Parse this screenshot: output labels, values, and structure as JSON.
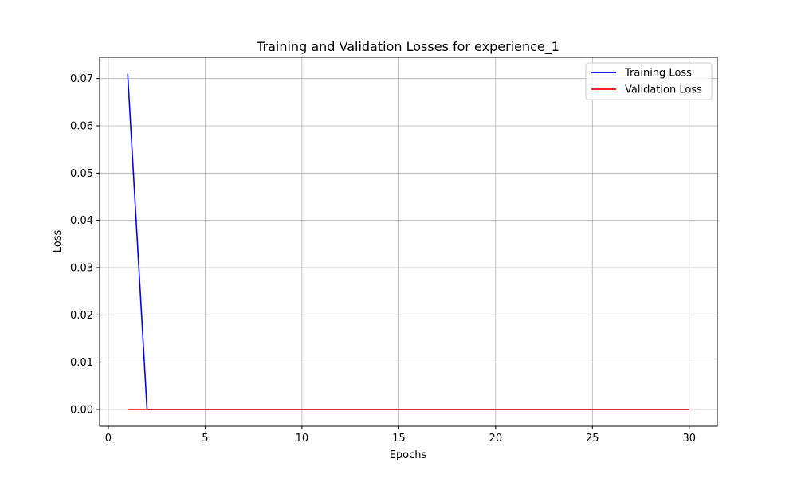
{
  "chart_data": {
    "type": "line",
    "title": "Training and Validation Losses for experience_1",
    "xlabel": "Epochs",
    "ylabel": "Loss",
    "xlim": [
      -0.45,
      31.45
    ],
    "ylim": [
      -0.00355,
      0.0745
    ],
    "xticks": [
      0,
      5,
      10,
      15,
      20,
      25,
      30
    ],
    "xtick_labels": [
      "0",
      "5",
      "10",
      "15",
      "20",
      "25",
      "30"
    ],
    "yticks": [
      0.0,
      0.01,
      0.02,
      0.03,
      0.04,
      0.05,
      0.06,
      0.07
    ],
    "ytick_labels": [
      "0.00",
      "0.01",
      "0.02",
      "0.03",
      "0.04",
      "0.05",
      "0.06",
      "0.07"
    ],
    "grid": true,
    "legend_position": "top-right",
    "series": [
      {
        "name": "Training Loss",
        "color": "#0000ff",
        "x": [
          1,
          2,
          3,
          4,
          5,
          6,
          7,
          8,
          9,
          10,
          11,
          12,
          13,
          14,
          15,
          16,
          17,
          18,
          19,
          20,
          21,
          22,
          23,
          24,
          25,
          26,
          27,
          28,
          29,
          30
        ],
        "y": [
          0.071,
          0.0,
          0.0,
          0.0,
          0.0,
          0.0,
          0.0,
          0.0,
          0.0,
          0.0,
          0.0,
          0.0,
          0.0,
          0.0,
          0.0,
          0.0,
          0.0,
          0.0,
          0.0,
          0.0,
          0.0,
          0.0,
          0.0,
          0.0,
          0.0,
          0.0,
          0.0,
          0.0,
          0.0,
          0.0
        ]
      },
      {
        "name": "Validation Loss",
        "color": "#ff0000",
        "x": [
          1,
          2,
          3,
          4,
          5,
          6,
          7,
          8,
          9,
          10,
          11,
          12,
          13,
          14,
          15,
          16,
          17,
          18,
          19,
          20,
          21,
          22,
          23,
          24,
          25,
          26,
          27,
          28,
          29,
          30
        ],
        "y": [
          0.0,
          0.0,
          0.0,
          0.0,
          0.0,
          0.0,
          0.0,
          0.0,
          0.0,
          0.0,
          0.0,
          0.0,
          0.0,
          0.0,
          0.0,
          0.0,
          0.0,
          0.0,
          0.0,
          0.0,
          0.0,
          0.0,
          0.0,
          0.0,
          0.0,
          0.0,
          0.0,
          0.0,
          0.0,
          0.0
        ]
      }
    ]
  }
}
